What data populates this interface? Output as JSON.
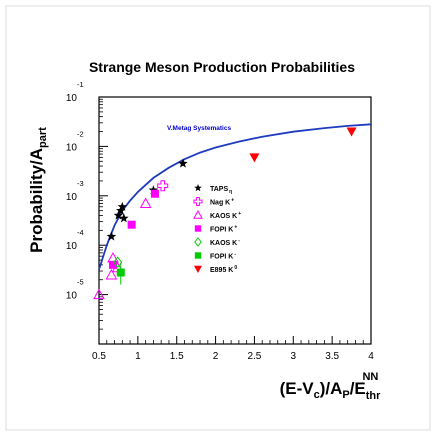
{
  "chart_data": {
    "type": "scatter",
    "title": "Strange Meson Production Probabilities",
    "xlabel": "(E-V",
    "ylabel": "Probability/A",
    "xlim": [
      0.5,
      4.0
    ],
    "ylim_log10": [
      -6,
      -1
    ],
    "y_scale": "log",
    "x_ticks": [
      "0.5",
      "1",
      "1.5",
      "2",
      "2.5",
      "3",
      "3.5",
      "4"
    ],
    "x_tick_values": [
      0.5,
      1.0,
      1.5,
      2.0,
      2.5,
      3.0,
      3.5,
      4.0
    ],
    "y_tick_exponents": [
      -1,
      -2,
      -3,
      -4,
      -5
    ],
    "y_tick_base": "10",
    "y_tick_exp_labels": [
      "-1",
      "-2",
      "-3",
      "-4",
      "-5"
    ],
    "annotation": "V.Metag Systematics",
    "curve_color": "#1f3bbf",
    "curve": {
      "x": [
        0.5,
        0.6,
        0.7,
        0.8,
        0.9,
        1.0,
        1.2,
        1.4,
        1.6,
        1.8,
        2.0,
        2.3,
        2.6,
        3.0,
        3.4,
        3.7,
        4.0
      ],
      "y": [
        3.2e-05,
        0.0001,
        0.00025,
        0.0005,
        0.0008,
        0.0012,
        0.0023,
        0.0037,
        0.0055,
        0.0075,
        0.0095,
        0.0125,
        0.0157,
        0.0198,
        0.0235,
        0.026,
        0.028
      ]
    },
    "series": [
      {
        "name": "TAPS η",
        "label_main": "TAPS",
        "label_sub": "η",
        "marker": "star",
        "color": "#000000",
        "x": [
          0.66,
          0.75,
          0.78,
          0.8,
          0.82,
          1.2,
          1.58
        ],
        "y": [
          0.00015,
          0.0004,
          0.0005,
          0.0006,
          0.00035,
          0.0013,
          0.0045
        ]
      },
      {
        "name": "Nag K+",
        "label_main": "Nag K",
        "label_sub": "+",
        "marker": "plus-open",
        "color": "#ff00ff",
        "x": [
          1.32
        ],
        "y": [
          0.0016
        ]
      },
      {
        "name": "KAOS K+",
        "label_main": "KAOS K",
        "label_sub": "+",
        "marker": "triangle-open",
        "color": "#ff00ff",
        "x": [
          0.5,
          0.66,
          0.68,
          0.74,
          1.1
        ],
        "y": [
          1e-05,
          2.5e-05,
          5.5e-05,
          3.5e-05,
          0.0007
        ]
      },
      {
        "name": "FOPI K+",
        "label_main": "FOPI K",
        "label_sub": "+",
        "marker": "square",
        "color": "#ff00ff",
        "x": [
          0.68,
          0.92,
          1.22
        ],
        "y": [
          4e-05,
          0.00026,
          0.0011
        ]
      },
      {
        "name": "KAOS K-",
        "label_main": "KAOS K",
        "label_sub": "-",
        "marker": "diamond-open",
        "color": "#00cc00",
        "x": [
          0.74
        ],
        "y": [
          4.5e-05
        ]
      },
      {
        "name": "FOPI K-",
        "label_main": "FOPI K",
        "label_sub": "-",
        "marker": "square",
        "color": "#00cc00",
        "x": [
          0.78
        ],
        "y": [
          2.8e-05
        ]
      },
      {
        "name": "E895 K0",
        "label_main": "E895 K",
        "label_sub": "0",
        "marker": "triangle-down",
        "color": "#ff0000",
        "x": [
          2.5,
          3.75
        ],
        "y": [
          0.006,
          0.02
        ]
      }
    ]
  }
}
